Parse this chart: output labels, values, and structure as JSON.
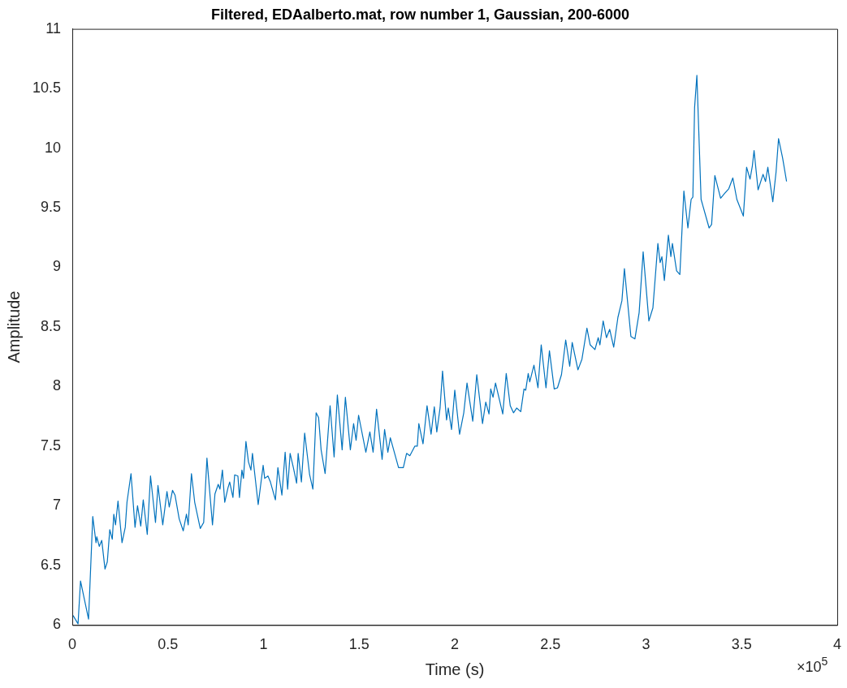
{
  "chart_data": {
    "type": "line",
    "title": "Filtered, EDAalberto.mat, row number 1, Gaussian, 200-6000",
    "xlabel": "Time (s)",
    "ylabel": "Amplitude",
    "annotations": [
      "×10$^{5}$"
    ],
    "xlim": [
      0,
      4
    ],
    "xticks": [
      0,
      0.5,
      1,
      1.5,
      2,
      2.5,
      3,
      3.5,
      4
    ],
    "ylim": [
      6,
      11
    ],
    "yticks": [
      6,
      6.5,
      7,
      7.5,
      8,
      8.5,
      9,
      9.5,
      10,
      10.5,
      11
    ],
    "series": [
      {
        "color": "#0072bd",
        "x": [
          0.004,
          0.03,
          0.043,
          0.085,
          0.107,
          0.124,
          0.128,
          0.141,
          0.154,
          0.171,
          0.183,
          0.196,
          0.209,
          0.217,
          0.226,
          0.239,
          0.26,
          0.277,
          0.286,
          0.307,
          0.328,
          0.341,
          0.358,
          0.371,
          0.392,
          0.409,
          0.435,
          0.448,
          0.473,
          0.495,
          0.507,
          0.524,
          0.537,
          0.559,
          0.58,
          0.597,
          0.606,
          0.623,
          0.64,
          0.669,
          0.687,
          0.704,
          0.733,
          0.746,
          0.763,
          0.772,
          0.785,
          0.797,
          0.814,
          0.823,
          0.84,
          0.849,
          0.866,
          0.874,
          0.887,
          0.895,
          0.908,
          0.921,
          0.934,
          0.942,
          0.972,
          0.998,
          1.006,
          1.023,
          1.036,
          1.062,
          1.075,
          1.096,
          1.113,
          1.126,
          1.139,
          1.156,
          1.173,
          1.181,
          1.198,
          1.215,
          1.241,
          1.258,
          1.275,
          1.288,
          1.301,
          1.322,
          1.348,
          1.369,
          1.386,
          1.411,
          1.428,
          1.454,
          1.471,
          1.484,
          1.497,
          1.535,
          1.556,
          1.573,
          1.591,
          1.62,
          1.633,
          1.65,
          1.663,
          1.706,
          1.731,
          1.748,
          1.765,
          1.791,
          1.804,
          1.812,
          1.834,
          1.855,
          1.876,
          1.893,
          1.906,
          1.923,
          1.936,
          1.957,
          1.966,
          1.983,
          2.0,
          2.025,
          2.047,
          2.064,
          2.094,
          2.115,
          2.145,
          2.162,
          2.179,
          2.188,
          2.2,
          2.213,
          2.251,
          2.269,
          2.29,
          2.307,
          2.324,
          2.345,
          2.362,
          2.371,
          2.384,
          2.392,
          2.414,
          2.435,
          2.452,
          2.477,
          2.495,
          2.52,
          2.537,
          2.558,
          2.58,
          2.601,
          2.614,
          2.644,
          2.665,
          2.691,
          2.708,
          2.733,
          2.75,
          2.759,
          2.776,
          2.793,
          2.81,
          2.831,
          2.853,
          2.874,
          2.887,
          2.921,
          2.942,
          2.964,
          2.985,
          3.015,
          3.036,
          3.062,
          3.074,
          3.083,
          3.096,
          3.117,
          3.13,
          3.138,
          3.16,
          3.177,
          3.198,
          3.219,
          3.236,
          3.245,
          3.254,
          3.266,
          3.288,
          3.33,
          3.343,
          3.36,
          3.39,
          3.411,
          3.433,
          3.454,
          3.475,
          3.509,
          3.526,
          3.544,
          3.556,
          3.565,
          3.586,
          3.612,
          3.625,
          3.637,
          3.663,
          3.68,
          3.693,
          3.714,
          3.735
        ],
        "values": [
          6.08,
          6.01,
          6.37,
          6.05,
          6.91,
          6.69,
          6.74,
          6.66,
          6.71,
          6.47,
          6.53,
          6.8,
          6.72,
          6.93,
          6.84,
          7.04,
          6.69,
          6.82,
          7.03,
          7.27,
          6.82,
          7.0,
          6.83,
          7.05,
          6.76,
          7.25,
          6.86,
          7.17,
          6.84,
          7.12,
          6.99,
          7.13,
          7.09,
          6.89,
          6.79,
          6.93,
          6.84,
          7.27,
          7.03,
          6.81,
          6.86,
          7.4,
          6.84,
          7.1,
          7.18,
          7.14,
          7.3,
          7.03,
          7.15,
          7.2,
          7.07,
          7.26,
          7.25,
          7.07,
          7.3,
          7.23,
          7.54,
          7.37,
          7.3,
          7.44,
          7.01,
          7.34,
          7.23,
          7.25,
          7.2,
          7.05,
          7.32,
          7.09,
          7.45,
          7.14,
          7.44,
          7.32,
          7.19,
          7.44,
          7.2,
          7.61,
          7.26,
          7.14,
          7.78,
          7.74,
          7.47,
          7.27,
          7.84,
          7.41,
          7.93,
          7.47,
          7.91,
          7.47,
          7.69,
          7.55,
          7.76,
          7.45,
          7.62,
          7.45,
          7.81,
          7.39,
          7.64,
          7.45,
          7.57,
          7.32,
          7.32,
          7.44,
          7.42,
          7.5,
          7.5,
          7.69,
          7.52,
          7.84,
          7.6,
          7.83,
          7.62,
          7.82,
          8.13,
          7.72,
          7.82,
          7.64,
          7.97,
          7.6,
          7.78,
          8.03,
          7.71,
          8.1,
          7.69,
          7.87,
          7.77,
          7.98,
          7.91,
          8.03,
          7.77,
          8.11,
          7.84,
          7.78,
          7.82,
          7.79,
          7.98,
          7.97,
          8.11,
          8.04,
          8.18,
          7.99,
          8.35,
          7.99,
          8.3,
          7.98,
          7.99,
          8.1,
          8.39,
          8.17,
          8.37,
          8.14,
          8.23,
          8.49,
          8.35,
          8.31,
          8.41,
          8.35,
          8.55,
          8.41,
          8.48,
          8.33,
          8.58,
          8.72,
          8.99,
          8.42,
          8.4,
          8.62,
          9.13,
          8.55,
          8.66,
          9.2,
          9.04,
          9.09,
          8.89,
          9.27,
          9.09,
          9.2,
          8.97,
          8.94,
          9.64,
          9.33,
          9.57,
          9.59,
          10.34,
          10.61,
          9.57,
          9.33,
          9.36,
          9.77,
          9.58,
          9.62,
          9.66,
          9.75,
          9.57,
          9.43,
          9.84,
          9.74,
          9.85,
          9.98,
          9.65,
          9.78,
          9.72,
          9.84,
          9.55,
          9.8,
          10.08,
          9.92,
          9.72
        ]
      }
    ]
  }
}
